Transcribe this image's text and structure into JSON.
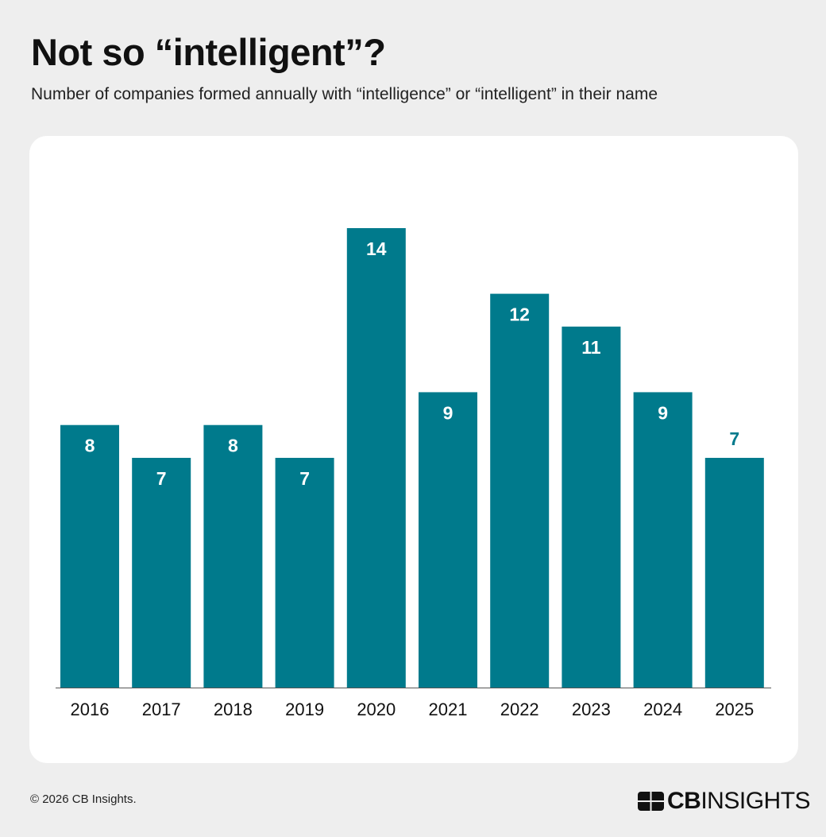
{
  "header": {
    "title": "Not so “intelligent”?",
    "subtitle": "Number of companies formed annually with “intelligence” or “intelligent” in their name"
  },
  "footer": {
    "copyright": "© 2026 CB Insights.",
    "logo_text": "CBINSIGHTS"
  },
  "colors": {
    "bar": "#007a8c",
    "label_inside": "#ffffff",
    "background": "#eeeeee",
    "card": "#ffffff"
  },
  "chart_data": {
    "type": "bar",
    "title": "Not so “intelligent”?",
    "subtitle": "Number of companies formed annually with “intelligence” or “intelligent” in their name",
    "categories": [
      "2016",
      "2017",
      "2018",
      "2019",
      "2020",
      "2021",
      "2022",
      "2023",
      "2024",
      "2025"
    ],
    "values": [
      8,
      7,
      8,
      7,
      14,
      9,
      12,
      11,
      9,
      7
    ],
    "xlabel": "",
    "ylabel": "",
    "ylim": [
      0,
      14
    ],
    "grid": false,
    "data_labels": true
  }
}
